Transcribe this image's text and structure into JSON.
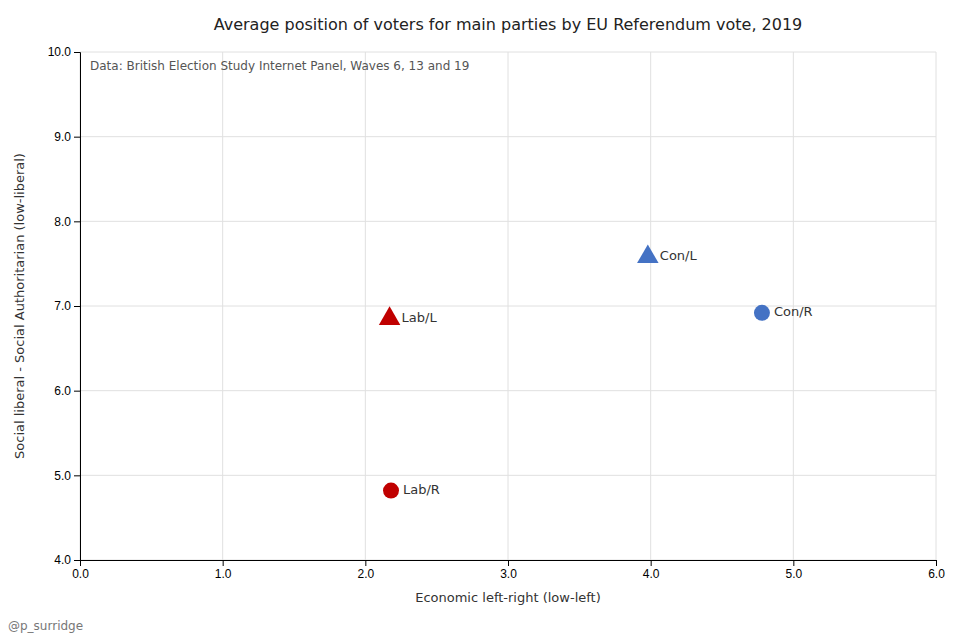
{
  "chart_data": {
    "type": "scatter",
    "title": "Average position of voters for main parties by EU Referendum vote, 2019",
    "x_label": "Economic left-right (low-left)",
    "y_label": "Social liberal - Social Authoritarian (low-liberal)",
    "annotations": [
      "Data: British Election Study Internet Panel, Waves 6, 13 and 19",
      "@p_surridge"
    ],
    "xlim": [
      0.0,
      6.0
    ],
    "ylim": [
      4.0,
      10.0
    ],
    "xticks": [
      {
        "value": 0,
        "label": "0.0"
      },
      {
        "value": 1,
        "label": "1.0"
      },
      {
        "value": 2,
        "label": "2.0"
      },
      {
        "value": 3,
        "label": "3.0"
      },
      {
        "value": 4,
        "label": "4.0"
      },
      {
        "value": 5,
        "label": "5.0"
      },
      {
        "value": 6,
        "label": "6.0"
      }
    ],
    "yticks": [
      {
        "value": 4,
        "label": "4.0"
      },
      {
        "value": 5,
        "label": "5.0"
      },
      {
        "value": 6,
        "label": "6.0"
      },
      {
        "value": 7,
        "label": "7.0"
      },
      {
        "value": 8,
        "label": "8.0"
      },
      {
        "value": 9,
        "label": "9.0"
      },
      {
        "value": 10,
        "label": "10.0"
      }
    ],
    "grid": true,
    "series": [
      {
        "name": "Con/L",
        "x": [
          3.98
        ],
        "values": [
          7.58
        ],
        "marker": "triangle",
        "color": "#4472C4"
      },
      {
        "name": "Con/R",
        "x": [
          4.78
        ],
        "values": [
          6.92
        ],
        "marker": "circle",
        "color": "#4472C4"
      },
      {
        "name": "Lab/L",
        "x": [
          2.17
        ],
        "values": [
          6.85
        ],
        "marker": "triangle",
        "color": "#C00000"
      },
      {
        "name": "Lab/R",
        "x": [
          2.18
        ],
        "values": [
          4.82
        ],
        "marker": "circle",
        "color": "#C00000"
      }
    ]
  }
}
